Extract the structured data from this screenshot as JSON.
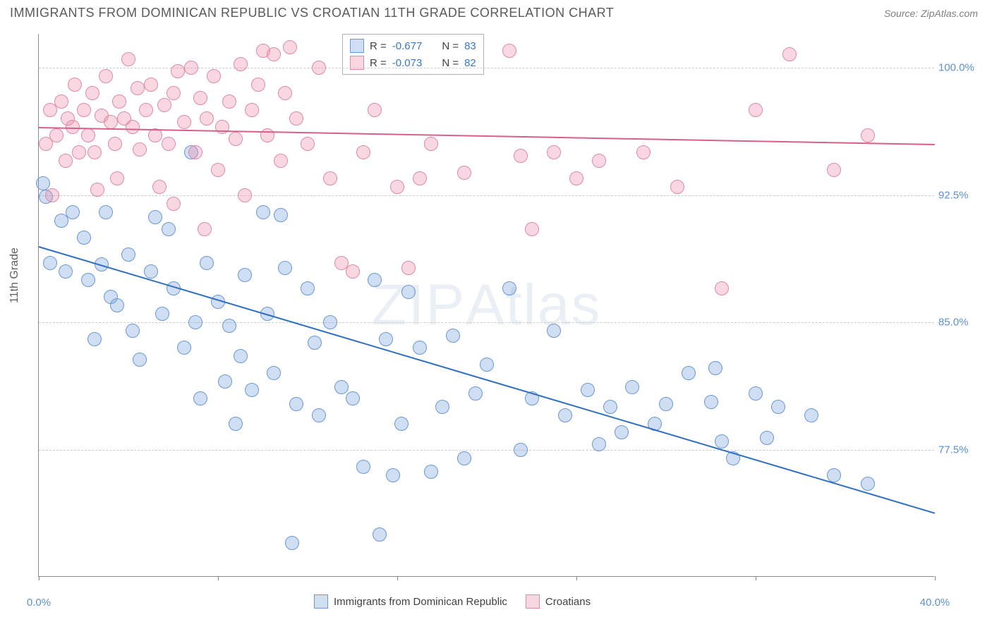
{
  "title": "IMMIGRANTS FROM DOMINICAN REPUBLIC VS CROATIAN 11TH GRADE CORRELATION CHART",
  "source_label": "Source: ",
  "source_name": "ZipAtlas.com",
  "y_axis_label": "11th Grade",
  "watermark": "ZIPAtlas",
  "chart": {
    "type": "scatter",
    "xlim": [
      0,
      40
    ],
    "ylim": [
      70,
      102
    ],
    "x_ticks": [
      0,
      8,
      16,
      24,
      32,
      40
    ],
    "x_tick_labels": [
      "0.0%",
      "",
      "",
      "",
      "",
      "40.0%"
    ],
    "y_ticks": [
      77.5,
      85.0,
      92.5,
      100.0
    ],
    "y_tick_labels": [
      "77.5%",
      "85.0%",
      "92.5%",
      "100.0%"
    ],
    "grid_color": "#cccccc",
    "axis_color": "#888888",
    "background_color": "#ffffff",
    "tick_label_color": "#5b8fd6",
    "marker_radius": 10,
    "marker_stroke_width": 1
  },
  "series": [
    {
      "name": "Immigrants from Dominican Republic",
      "fill": "rgba(120,160,220,0.35)",
      "stroke": "#6a98d4",
      "R": "-0.677",
      "N": "83",
      "trend": {
        "x1": 0,
        "y1": 89.5,
        "x2": 40,
        "y2": 73.8,
        "color": "#2e6fc0",
        "width": 2
      },
      "points": [
        [
          0.2,
          93.2
        ],
        [
          0.3,
          92.4
        ],
        [
          0.5,
          88.5
        ],
        [
          1.0,
          91.0
        ],
        [
          1.2,
          88.0
        ],
        [
          1.5,
          91.5
        ],
        [
          2.0,
          90.0
        ],
        [
          2.2,
          87.5
        ],
        [
          2.5,
          84.0
        ],
        [
          2.8,
          88.4
        ],
        [
          3.0,
          91.5
        ],
        [
          3.2,
          86.5
        ],
        [
          3.5,
          86.0
        ],
        [
          4.0,
          89.0
        ],
        [
          4.2,
          84.5
        ],
        [
          4.5,
          82.8
        ],
        [
          5.0,
          88.0
        ],
        [
          5.2,
          91.2
        ],
        [
          5.5,
          85.5
        ],
        [
          5.8,
          90.5
        ],
        [
          6.0,
          87.0
        ],
        [
          6.5,
          83.5
        ],
        [
          6.8,
          95.0
        ],
        [
          7.0,
          85.0
        ],
        [
          7.2,
          80.5
        ],
        [
          7.5,
          88.5
        ],
        [
          8.0,
          86.2
        ],
        [
          8.3,
          81.5
        ],
        [
          8.5,
          84.8
        ],
        [
          8.8,
          79.0
        ],
        [
          9.0,
          83.0
        ],
        [
          9.2,
          87.8
        ],
        [
          9.5,
          81.0
        ],
        [
          10.0,
          91.5
        ],
        [
          10.2,
          85.5
        ],
        [
          10.5,
          82.0
        ],
        [
          10.8,
          91.3
        ],
        [
          11.0,
          88.2
        ],
        [
          11.3,
          72.0
        ],
        [
          11.5,
          80.2
        ],
        [
          12.0,
          87.0
        ],
        [
          12.3,
          83.8
        ],
        [
          12.5,
          79.5
        ],
        [
          13.0,
          85.0
        ],
        [
          13.5,
          81.2
        ],
        [
          14.0,
          80.5
        ],
        [
          14.5,
          76.5
        ],
        [
          15.0,
          87.5
        ],
        [
          15.2,
          72.5
        ],
        [
          15.5,
          84.0
        ],
        [
          15.8,
          76.0
        ],
        [
          16.2,
          79.0
        ],
        [
          16.5,
          86.8
        ],
        [
          17.0,
          83.5
        ],
        [
          17.5,
          76.2
        ],
        [
          18.0,
          80.0
        ],
        [
          18.5,
          84.2
        ],
        [
          19.0,
          77.0
        ],
        [
          19.5,
          80.8
        ],
        [
          20.0,
          82.5
        ],
        [
          21.0,
          87.0
        ],
        [
          21.5,
          77.5
        ],
        [
          22.0,
          80.5
        ],
        [
          23.0,
          84.5
        ],
        [
          23.5,
          79.5
        ],
        [
          24.5,
          81.0
        ],
        [
          25.0,
          77.8
        ],
        [
          25.5,
          80.0
        ],
        [
          26.0,
          78.5
        ],
        [
          26.5,
          81.2
        ],
        [
          27.5,
          79.0
        ],
        [
          28.0,
          80.2
        ],
        [
          29.0,
          82.0
        ],
        [
          30.0,
          80.3
        ],
        [
          30.2,
          82.3
        ],
        [
          30.5,
          78.0
        ],
        [
          31.0,
          77.0
        ],
        [
          32.0,
          80.8
        ],
        [
          32.5,
          78.2
        ],
        [
          33.0,
          80.0
        ],
        [
          34.5,
          79.5
        ],
        [
          35.5,
          76.0
        ],
        [
          37.0,
          75.5
        ]
      ]
    },
    {
      "name": "Croatians",
      "fill": "rgba(235,140,170,0.35)",
      "stroke": "#e089a5",
      "R": "-0.073",
      "N": "82",
      "trend": {
        "x1": 0,
        "y1": 96.5,
        "x2": 40,
        "y2": 95.5,
        "color": "#d85f88",
        "width": 2
      },
      "points": [
        [
          0.3,
          95.5
        ],
        [
          0.5,
          97.5
        ],
        [
          0.6,
          92.5
        ],
        [
          0.8,
          96.0
        ],
        [
          1.0,
          98.0
        ],
        [
          1.2,
          94.5
        ],
        [
          1.3,
          97.0
        ],
        [
          1.5,
          96.5
        ],
        [
          1.6,
          99.0
        ],
        [
          1.8,
          95.0
        ],
        [
          2.0,
          97.5
        ],
        [
          2.2,
          96.0
        ],
        [
          2.4,
          98.5
        ],
        [
          2.5,
          95.0
        ],
        [
          2.6,
          92.8
        ],
        [
          2.8,
          97.2
        ],
        [
          3.0,
          99.5
        ],
        [
          3.2,
          96.8
        ],
        [
          3.4,
          95.5
        ],
        [
          3.5,
          93.5
        ],
        [
          3.6,
          98.0
        ],
        [
          3.8,
          97.0
        ],
        [
          4.0,
          100.5
        ],
        [
          4.2,
          96.5
        ],
        [
          4.4,
          98.8
        ],
        [
          4.5,
          95.2
        ],
        [
          4.8,
          97.5
        ],
        [
          5.0,
          99.0
        ],
        [
          5.2,
          96.0
        ],
        [
          5.4,
          93.0
        ],
        [
          5.6,
          97.8
        ],
        [
          5.8,
          95.5
        ],
        [
          6.0,
          98.5
        ],
        [
          6.0,
          92.0
        ],
        [
          6.2,
          99.8
        ],
        [
          6.5,
          96.8
        ],
        [
          6.8,
          100.0
        ],
        [
          7.0,
          95.0
        ],
        [
          7.2,
          98.2
        ],
        [
          7.4,
          90.5
        ],
        [
          7.5,
          97.0
        ],
        [
          7.8,
          99.5
        ],
        [
          8.0,
          94.0
        ],
        [
          8.2,
          96.5
        ],
        [
          8.5,
          98.0
        ],
        [
          8.8,
          95.8
        ],
        [
          9.0,
          100.2
        ],
        [
          9.2,
          92.5
        ],
        [
          9.5,
          97.5
        ],
        [
          9.8,
          99.0
        ],
        [
          10.0,
          101.0
        ],
        [
          10.2,
          96.0
        ],
        [
          10.5,
          100.8
        ],
        [
          10.8,
          94.5
        ],
        [
          11.0,
          98.5
        ],
        [
          11.2,
          101.2
        ],
        [
          11.5,
          97.0
        ],
        [
          12.0,
          95.5
        ],
        [
          12.5,
          100.0
        ],
        [
          13.0,
          93.5
        ],
        [
          13.5,
          88.5
        ],
        [
          14.0,
          88.0
        ],
        [
          14.5,
          95.0
        ],
        [
          15.0,
          97.5
        ],
        [
          16.0,
          93.0
        ],
        [
          16.5,
          88.2
        ],
        [
          17.0,
          93.5
        ],
        [
          17.5,
          95.5
        ],
        [
          19.0,
          93.8
        ],
        [
          21.0,
          101.0
        ],
        [
          21.5,
          94.8
        ],
        [
          22.0,
          90.5
        ],
        [
          23.0,
          95.0
        ],
        [
          24.0,
          93.5
        ],
        [
          25.0,
          94.5
        ],
        [
          27.0,
          95.0
        ],
        [
          28.5,
          93.0
        ],
        [
          30.5,
          87.0
        ],
        [
          32.0,
          97.5
        ],
        [
          33.5,
          100.8
        ],
        [
          35.5,
          94.0
        ],
        [
          37.0,
          96.0
        ]
      ]
    }
  ],
  "legend_top": {
    "R_label": "R =",
    "N_label": "N ="
  },
  "legend_bottom_labels": [
    "Immigrants from Dominican Republic",
    "Croatians"
  ]
}
